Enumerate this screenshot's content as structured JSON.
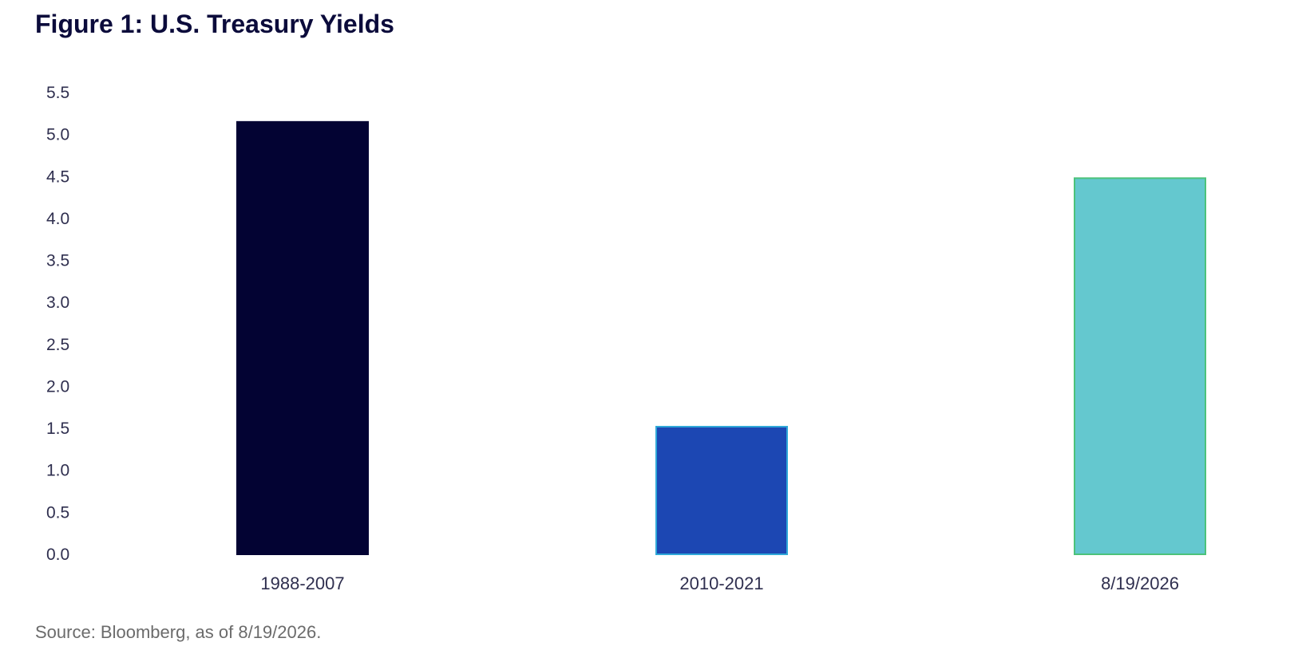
{
  "chart_data": {
    "type": "bar",
    "title": "Figure 1: U.S. Treasury Yields",
    "categories": [
      "1988-2007",
      "2010-2021",
      "8/19/2026"
    ],
    "values": [
      5.15,
      1.52,
      4.48
    ],
    "colors": [
      "#030333",
      "#1c47b3",
      "#64c8cf"
    ],
    "border_colors": [
      "#030333",
      "#2fa8d8",
      "#4cc27a"
    ],
    "ylim": [
      0,
      5.5
    ],
    "yticks": [
      "0.0",
      "0.5",
      "1.0",
      "1.5",
      "2.0",
      "2.5",
      "3.0",
      "3.5",
      "4.0",
      "4.5",
      "5.0",
      "5.5"
    ],
    "xlabel": "",
    "ylabel": "",
    "grid": false,
    "legend": "none"
  },
  "footer": {
    "source": "Source: Bloomberg, as of 8/19/2026."
  }
}
